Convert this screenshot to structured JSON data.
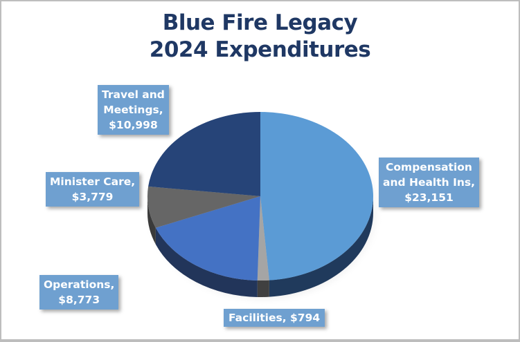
{
  "chart_data": {
    "type": "pie",
    "title": "Blue Fire Legacy 2024 Expenditures",
    "title_lines": [
      "Blue Fire Legacy",
      "2024 Expenditures"
    ],
    "categories": [
      "Compensation and Health Ins",
      "Facilities",
      "Operations",
      "Minister Care",
      "Travel and Meetings"
    ],
    "values": [
      23151,
      794,
      8773,
      3779,
      10998
    ],
    "colors": [
      "#5b9bd5",
      "#a5a5a5",
      "#4472c4",
      "#666666",
      "#264478"
    ],
    "side_colors": [
      "#203a5c",
      "#404040",
      "#22355a",
      "#3a3a3a",
      "#1c3257"
    ],
    "data_labels": [
      {
        "lines": [
          "Compensation",
          "and Health Ins,",
          "$23,151"
        ]
      },
      {
        "lines": [
          "Facilities,  $794"
        ]
      },
      {
        "lines": [
          "Operations,",
          "$8,773"
        ]
      },
      {
        "lines": [
          "Minister Care,",
          "$3,779"
        ]
      },
      {
        "lines": [
          "Travel and",
          "Meetings,",
          "$10,998"
        ]
      }
    ],
    "style": "3d-pie",
    "legend": "none",
    "label_bg_color": "#6fa0d0",
    "title_color": "#1f3864"
  }
}
